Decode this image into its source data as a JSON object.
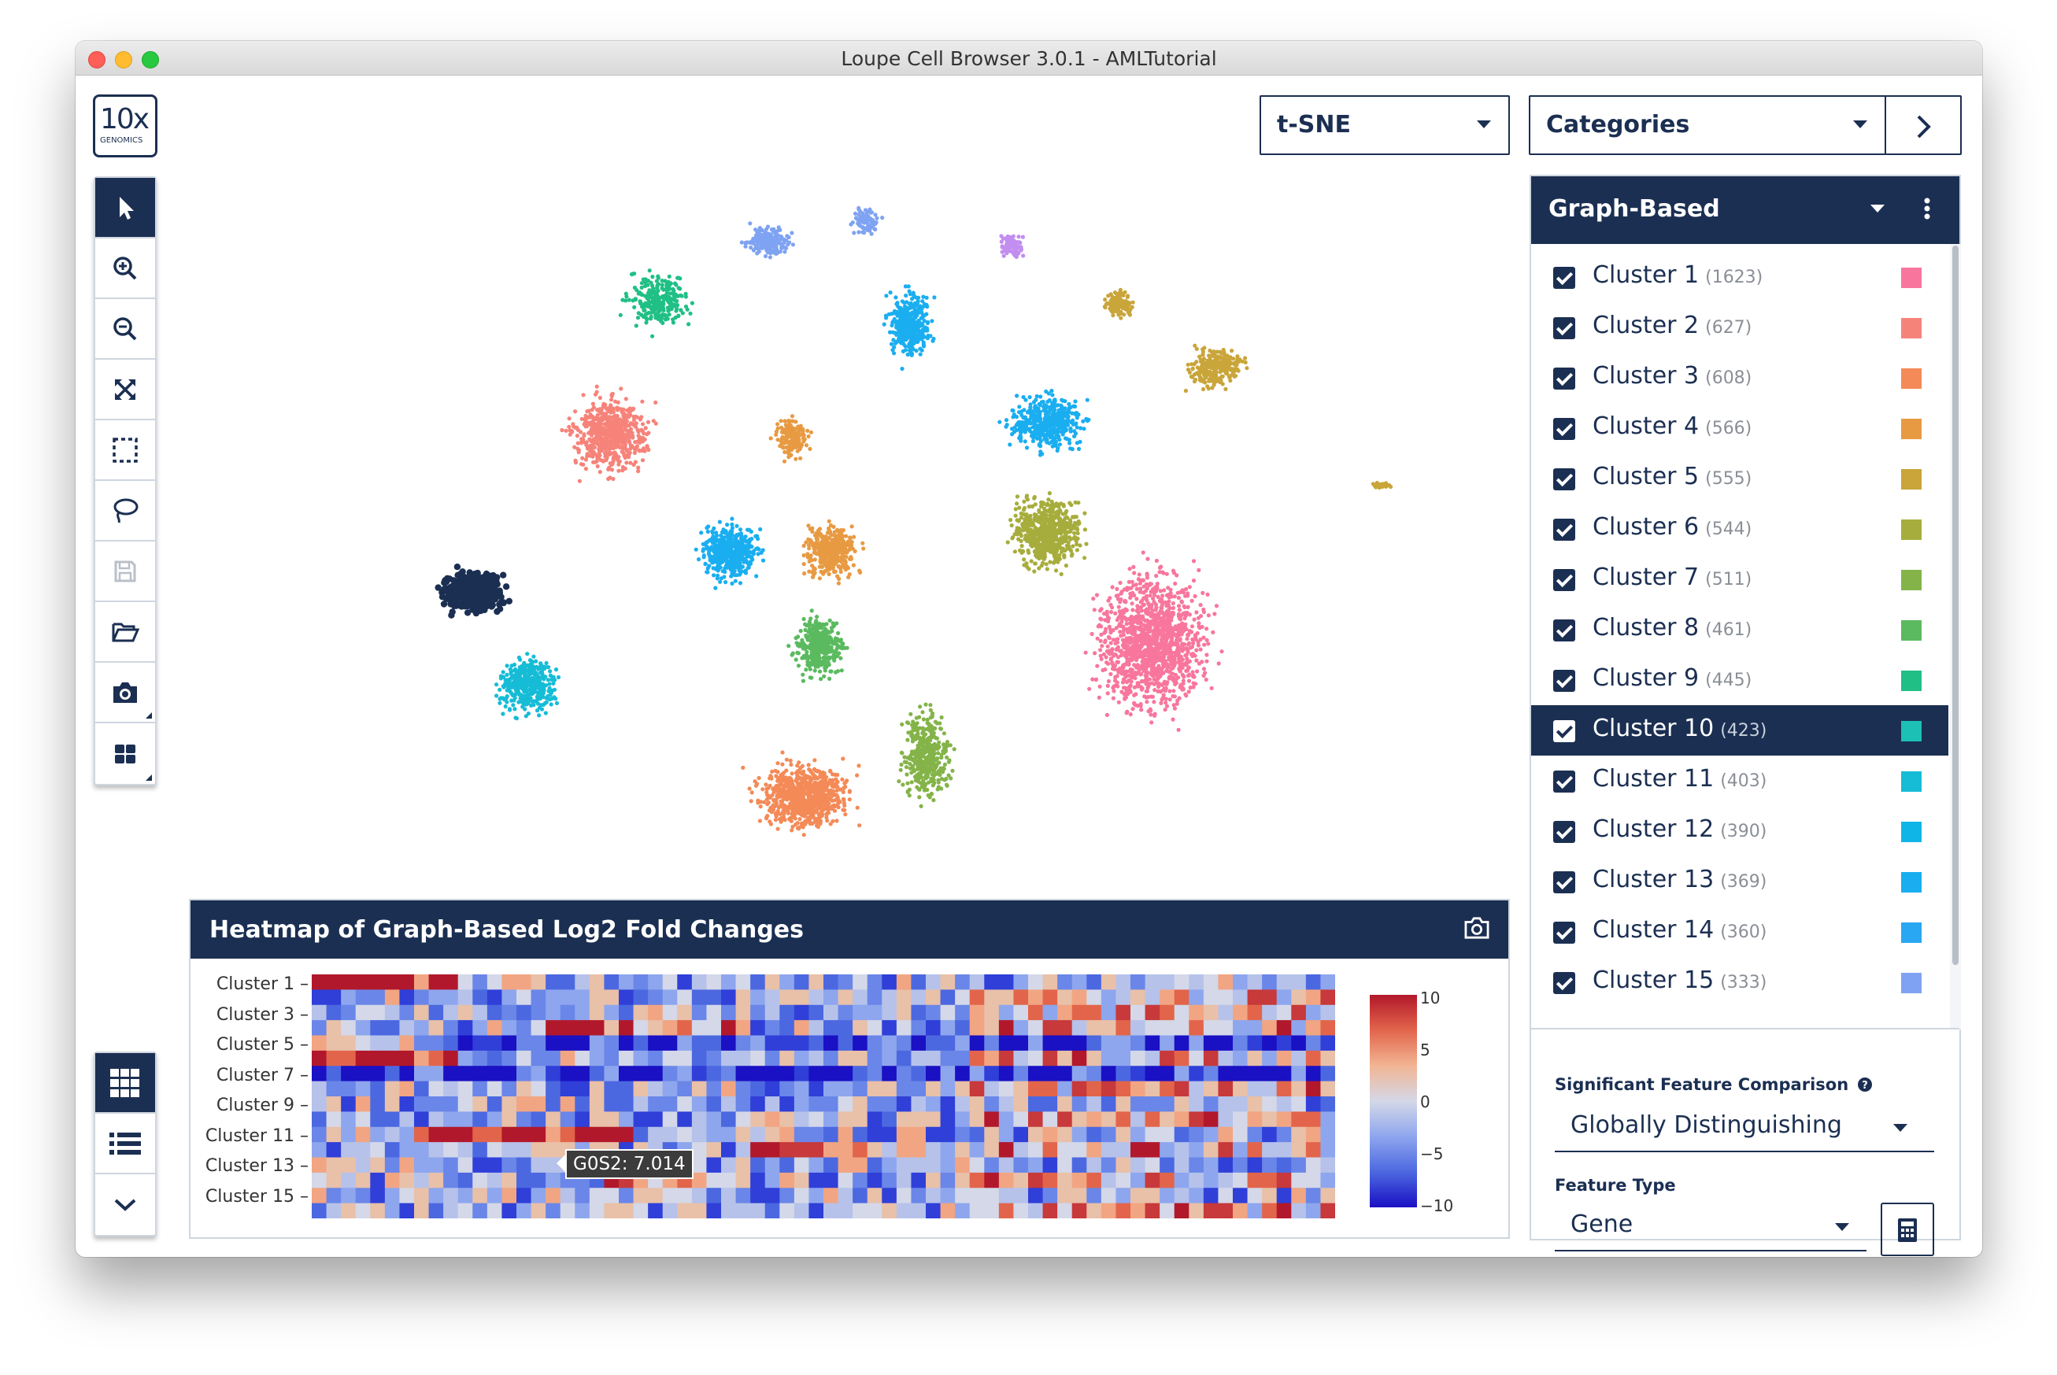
{
  "window": {
    "title": "Loupe Cell Browser 3.0.1 - AMLTutorial"
  },
  "logo": {
    "main": "10x",
    "sub": "GENOMICS"
  },
  "toolbar": {
    "tools": [
      "pointer-icon",
      "zoom-in-icon",
      "zoom-out-icon",
      "fit-icon",
      "box-select-icon",
      "lasso-icon",
      "save-icon",
      "open-folder-icon",
      "camera-icon",
      "grid-icon"
    ],
    "bottom_tools": [
      "heatmap-icon",
      "list-icon",
      "chevron-down-icon"
    ]
  },
  "projection_dropdown": {
    "value": "t-SNE"
  },
  "category_dropdown": {
    "value": "Categories"
  },
  "panel": {
    "title": "Graph-Based",
    "clusters": [
      {
        "name": "Cluster 1",
        "count": "(1623)",
        "color": "#f8769d"
      },
      {
        "name": "Cluster 2",
        "count": "(627)",
        "color": "#f6837a"
      },
      {
        "name": "Cluster 3",
        "count": "(608)",
        "color": "#f48a57"
      },
      {
        "name": "Cluster 4",
        "count": "(566)",
        "color": "#e89a43"
      },
      {
        "name": "Cluster 5",
        "count": "(555)",
        "color": "#c9a53a"
      },
      {
        "name": "Cluster 6",
        "count": "(544)",
        "color": "#a7ad3c"
      },
      {
        "name": "Cluster 7",
        "count": "(511)",
        "color": "#84b449"
      },
      {
        "name": "Cluster 8",
        "count": "(461)",
        "color": "#5bba5f"
      },
      {
        "name": "Cluster 9",
        "count": "(445)",
        "color": "#20bf86"
      },
      {
        "name": "Cluster 10",
        "count": "(423)",
        "color": "#1cc0b4"
      },
      {
        "name": "Cluster 11",
        "count": "(403)",
        "color": "#16bcd6"
      },
      {
        "name": "Cluster 12",
        "count": "(390)",
        "color": "#10b5e8"
      },
      {
        "name": "Cluster 13",
        "count": "(369)",
        "color": "#1aaef0"
      },
      {
        "name": "Cluster 14",
        "count": "(360)",
        "color": "#2aa7f2"
      },
      {
        "name": "Cluster 15",
        "count": "(333)",
        "color": "#7fa3f2"
      }
    ],
    "selected_index": 9,
    "sig_label": "Significant Feature Comparison",
    "sig_value": "Globally Distinguishing",
    "feature_label": "Feature Type",
    "feature_value": "Gene"
  },
  "heatmap": {
    "title": "Heatmap of Graph-Based Log2 Fold Changes",
    "row_labels": [
      "Cluster 1",
      "Cluster 3",
      "Cluster 5",
      "Cluster 7",
      "Cluster 9",
      "Cluster 11",
      "Cluster 13",
      "Cluster 15"
    ],
    "colorbar_ticks": [
      "10",
      "5",
      "0",
      "−5",
      "−10"
    ],
    "tooltip": "G0S2: 7.014"
  }
}
